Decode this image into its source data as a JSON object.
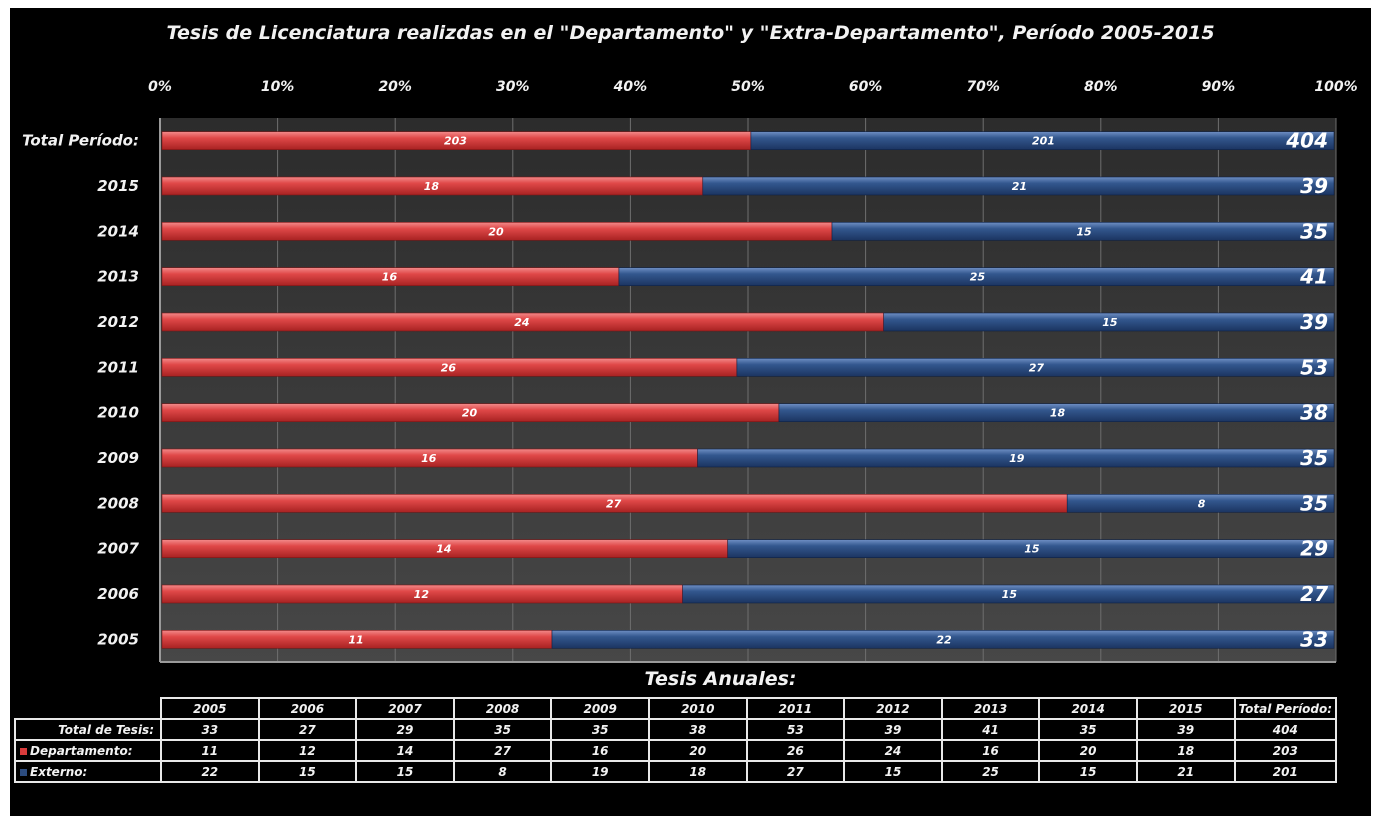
{
  "chart_data": {
    "type": "bar",
    "stacked": "percent",
    "orientation": "horizontal",
    "title": "Tesis de Licenciatura realizdas en el \"Departamento\" y \"Extra-Departamento\", Período 2005-2015",
    "xlim": [
      0,
      100
    ],
    "x_ticks": [
      "0%",
      "10%",
      "20%",
      "30%",
      "40%",
      "50%",
      "60%",
      "70%",
      "80%",
      "90%",
      "100%"
    ],
    "categories": [
      "Total Período:",
      "2015",
      "2014",
      "2013",
      "2012",
      "2011",
      "2010",
      "2009",
      "2008",
      "2007",
      "2006",
      "2005"
    ],
    "series": [
      {
        "name": "Departamento",
        "color": "#d93b3b",
        "values": [
          203,
          18,
          20,
          16,
          24,
          26,
          20,
          16,
          27,
          14,
          12,
          11
        ]
      },
      {
        "name": "Externo",
        "color": "#2c4c80",
        "values": [
          201,
          21,
          15,
          25,
          15,
          27,
          18,
          19,
          8,
          15,
          15,
          22
        ]
      }
    ],
    "totals": [
      404,
      39,
      35,
      41,
      39,
      53,
      38,
      35,
      35,
      29,
      27,
      33
    ],
    "grid": true,
    "legend": "table"
  },
  "table": {
    "title": "Tesis Anuales:",
    "headers": [
      "2005",
      "2006",
      "2007",
      "2008",
      "2009",
      "2010",
      "2011",
      "2012",
      "2013",
      "2014",
      "2015",
      "Total Período:"
    ],
    "rows": [
      {
        "label": "Total de Tesis:",
        "values": [
          "33",
          "27",
          "29",
          "35",
          "35",
          "38",
          "53",
          "39",
          "41",
          "35",
          "39",
          "404"
        ]
      },
      {
        "label": "Departamento:",
        "color": "#d93b3b",
        "values": [
          "11",
          "12",
          "14",
          "27",
          "16",
          "20",
          "26",
          "24",
          "16",
          "20",
          "18",
          "203"
        ]
      },
      {
        "label": "Externo:",
        "color": "#2c4c80",
        "values": [
          "22",
          "15",
          "15",
          "8",
          "19",
          "18",
          "27",
          "15",
          "25",
          "15",
          "21",
          "201"
        ]
      }
    ]
  }
}
